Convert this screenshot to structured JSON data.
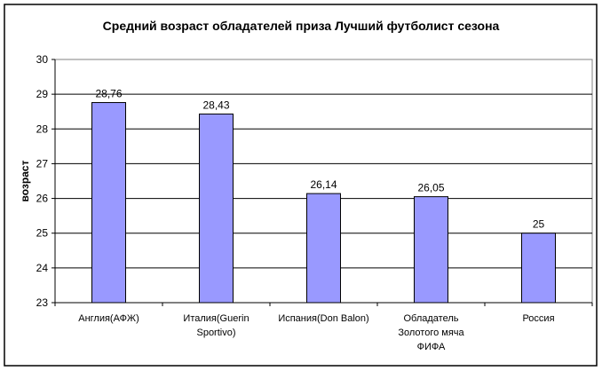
{
  "chart_data": {
    "type": "bar",
    "title": "Средний возраст обладателей приза Лучший футболист сезона",
    "xlabel": "",
    "ylabel": "возраст",
    "ylim": [
      23,
      30
    ],
    "yticks": [
      "23",
      "24",
      "25",
      "26",
      "27",
      "28",
      "29",
      "30"
    ],
    "grid": true,
    "categories": [
      [
        "Англия(АФЖ)"
      ],
      [
        "Италия(Guerin",
        "Sportivo)"
      ],
      [
        "Испания(Don Balon)"
      ],
      [
        "Обладатель",
        "Золотого мяча",
        "ФИФА"
      ],
      [
        "Россия"
      ]
    ],
    "values": [
      28.76,
      28.43,
      26.14,
      26.05,
      25
    ],
    "data_labels": [
      "28,76",
      "28,43",
      "26,14",
      "26,05",
      "25"
    ],
    "bar_color": "#9999FF"
  }
}
